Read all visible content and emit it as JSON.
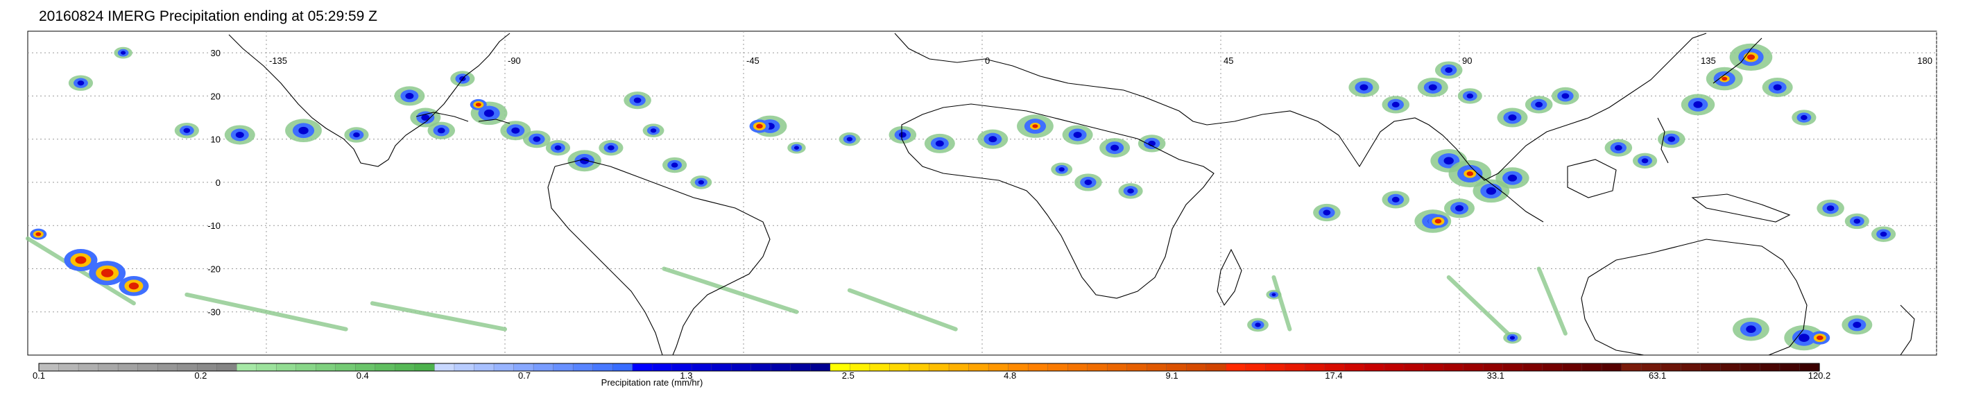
{
  "title": "20160824 IMERG Precipitation ending at 05:29:59 Z",
  "map": {
    "lon_range": [
      -180,
      180
    ],
    "lat_range": [
      -40,
      35
    ],
    "lat_ticks": [
      30,
      20,
      10,
      0,
      -10,
      -20,
      -30
    ],
    "lat_tick_labels": [
      "30",
      "20",
      "10",
      "0",
      "-10",
      "-20",
      "-30"
    ],
    "lon_ticks": [
      -135,
      -90,
      -45,
      0,
      45,
      90,
      135,
      180
    ],
    "lon_tick_labels": [
      "-135",
      "-90",
      "-45",
      "0",
      "45",
      "90",
      "135",
      "180"
    ],
    "grid": true,
    "coastline_color": "#000000"
  },
  "colorbar": {
    "label": "Precipitation rate (mm/hr)",
    "tick_labels": [
      "0.1",
      "0.2",
      "0.4",
      "0.7",
      "1.3",
      "2.5",
      "4.8",
      "9.1",
      "17.4",
      "33.1",
      "63.1",
      "120.2"
    ],
    "bin_colors": [
      "#bdbdbd",
      "#b6b6b6",
      "#afafaf",
      "#a8a8a8",
      "#a2a2a2",
      "#9c9c9c",
      "#969696",
      "#909090",
      "#8a8a8a",
      "#848484",
      "#a6e8a6",
      "#9ce29c",
      "#92dc92",
      "#88d688",
      "#7ed07e",
      "#74ca74",
      "#6ac46a",
      "#60be60",
      "#56b856",
      "#4db24d",
      "#c8d8ff",
      "#b8ccff",
      "#a8c0ff",
      "#98b4ff",
      "#88a8ff",
      "#789cff",
      "#6890ff",
      "#5884ff",
      "#4878ff",
      "#386cff",
      "#0000ff",
      "#0000f2",
      "#0000e6",
      "#0000da",
      "#0000ce",
      "#0000c2",
      "#0000b6",
      "#0000aa",
      "#00009e",
      "#000092",
      "#ffff00",
      "#fff200",
      "#ffe500",
      "#ffd800",
      "#ffcb00",
      "#ffbe00",
      "#ffb100",
      "#ffa400",
      "#ff9700",
      "#ff8a00",
      "#ff8000",
      "#fa7a00",
      "#f57300",
      "#f06d00",
      "#eb6600",
      "#e65f00",
      "#e05800",
      "#db5100",
      "#d64a00",
      "#d14300",
      "#ff2a00",
      "#f72400",
      "#ef1e00",
      "#e71800",
      "#df1200",
      "#d70c00",
      "#cf0600",
      "#c70000",
      "#bf0000",
      "#b70000",
      "#b00000",
      "#a60000",
      "#9c0000",
      "#920000",
      "#880000",
      "#7e0000",
      "#740000",
      "#6a0000",
      "#600000",
      "#560000",
      "#7a1a0a",
      "#731709",
      "#6c1408",
      "#651107",
      "#5e0e06",
      "#570b05",
      "#500804",
      "#490503",
      "#420202",
      "#3b0000"
    ]
  },
  "precip_colors": {
    "light": "#8cc98c",
    "moderate": "#3f6fff",
    "heavy": "#0000d0",
    "intense": "#ffc000",
    "extreme": "#e02000"
  },
  "precip_cells": [
    {
      "lon": -170,
      "lat": 23,
      "size": 8
    },
    {
      "lon": -162,
      "lat": 30,
      "size": 6
    },
    {
      "lon": -150,
      "lat": 12,
      "size": 8
    },
    {
      "lon": -140,
      "lat": 11,
      "size": 10
    },
    {
      "lon": -128,
      "lat": 12,
      "size": 12
    },
    {
      "lon": -118,
      "lat": 11,
      "size": 8
    },
    {
      "lon": -108,
      "lat": 20,
      "size": 10
    },
    {
      "lon": -105,
      "lat": 15,
      "size": 10
    },
    {
      "lon": -102,
      "lat": 12,
      "size": 9
    },
    {
      "lon": -98,
      "lat": 24,
      "size": 8
    },
    {
      "lon": -93,
      "lat": 16,
      "size": 12
    },
    {
      "lon": -88,
      "lat": 12,
      "size": 10
    },
    {
      "lon": -84,
      "lat": 10,
      "size": 9
    },
    {
      "lon": -80,
      "lat": 8,
      "size": 8
    },
    {
      "lon": -75,
      "lat": 5,
      "size": 11
    },
    {
      "lon": -70,
      "lat": 8,
      "size": 8
    },
    {
      "lon": -65,
      "lat": 19,
      "size": 9
    },
    {
      "lon": -58,
      "lat": 4,
      "size": 8
    },
    {
      "lon": -53,
      "lat": 0,
      "size": 7
    },
    {
      "lon": -62,
      "lat": 12,
      "size": 7
    },
    {
      "lon": -40,
      "lat": 13,
      "size": 11
    },
    {
      "lon": -35,
      "lat": 8,
      "size": 6
    },
    {
      "lon": -25,
      "lat": 10,
      "size": 7
    },
    {
      "lon": -15,
      "lat": 11,
      "size": 9
    },
    {
      "lon": -8,
      "lat": 9,
      "size": 10
    },
    {
      "lon": 2,
      "lat": 10,
      "size": 10
    },
    {
      "lon": 10,
      "lat": 13,
      "size": 12
    },
    {
      "lon": 18,
      "lat": 11,
      "size": 10
    },
    {
      "lon": 25,
      "lat": 8,
      "size": 10
    },
    {
      "lon": 32,
      "lat": 9,
      "size": 9
    },
    {
      "lon": 20,
      "lat": 0,
      "size": 9
    },
    {
      "lon": 28,
      "lat": -2,
      "size": 8
    },
    {
      "lon": 15,
      "lat": 3,
      "size": 7
    },
    {
      "lon": 72,
      "lat": 22,
      "size": 10
    },
    {
      "lon": 78,
      "lat": 18,
      "size": 9
    },
    {
      "lon": 85,
      "lat": 22,
      "size": 10
    },
    {
      "lon": 88,
      "lat": 26,
      "size": 9
    },
    {
      "lon": 92,
      "lat": 20,
      "size": 8
    },
    {
      "lon": 100,
      "lat": 15,
      "size": 10
    },
    {
      "lon": 105,
      "lat": 18,
      "size": 9
    },
    {
      "lon": 110,
      "lat": 20,
      "size": 9
    },
    {
      "lon": 88,
      "lat": 5,
      "size": 12
    },
    {
      "lon": 92,
      "lat": 2,
      "size": 14
    },
    {
      "lon": 96,
      "lat": -2,
      "size": 12
    },
    {
      "lon": 100,
      "lat": 1,
      "size": 11
    },
    {
      "lon": 85,
      "lat": -9,
      "size": 12
    },
    {
      "lon": 90,
      "lat": -6,
      "size": 10
    },
    {
      "lon": 78,
      "lat": -4,
      "size": 9
    },
    {
      "lon": 65,
      "lat": -7,
      "size": 9
    },
    {
      "lon": 120,
      "lat": 8,
      "size": 9
    },
    {
      "lon": 125,
      "lat": 5,
      "size": 8
    },
    {
      "lon": 130,
      "lat": 10,
      "size": 9
    },
    {
      "lon": 135,
      "lat": 18,
      "size": 11
    },
    {
      "lon": 140,
      "lat": 24,
      "size": 12
    },
    {
      "lon": 145,
      "lat": 29,
      "size": 14
    },
    {
      "lon": 150,
      "lat": 22,
      "size": 10
    },
    {
      "lon": 155,
      "lat": 15,
      "size": 8
    },
    {
      "lon": 160,
      "lat": -6,
      "size": 9
    },
    {
      "lon": 165,
      "lat": -9,
      "size": 8
    },
    {
      "lon": 170,
      "lat": -12,
      "size": 8
    },
    {
      "lon": 145,
      "lat": -34,
      "size": 12
    },
    {
      "lon": 155,
      "lat": -36,
      "size": 13
    },
    {
      "lon": 165,
      "lat": -33,
      "size": 10
    },
    {
      "lon": 52,
      "lat": -33,
      "size": 7
    },
    {
      "lon": 100,
      "lat": -36,
      "size": 6
    },
    {
      "lon": 55,
      "lat": -26,
      "size": 5
    }
  ],
  "heavy_cells": [
    {
      "lon": -170,
      "lat": -18,
      "size": 10
    },
    {
      "lon": -165,
      "lat": -21,
      "size": 11
    },
    {
      "lon": -160,
      "lat": -24,
      "size": 9
    },
    {
      "lon": -95,
      "lat": 18,
      "size": 5
    },
    {
      "lon": -42,
      "lat": 13,
      "size": 6
    },
    {
      "lon": 10,
      "lat": 13,
      "size": 5
    },
    {
      "lon": 92,
      "lat": 2,
      "size": 6
    },
    {
      "lon": 86,
      "lat": -9,
      "size": 6
    },
    {
      "lon": 145,
      "lat": 29,
      "size": 7
    },
    {
      "lon": 140,
      "lat": 24,
      "size": 5
    },
    {
      "lon": 158,
      "lat": -36,
      "size": 6
    },
    {
      "lon": -178,
      "lat": -12,
      "size": 5
    }
  ],
  "light_streaks": [
    {
      "lon1": -150,
      "lat1": -26,
      "lon2": -120,
      "lat2": -34
    },
    {
      "lon1": -115,
      "lat1": -28,
      "lon2": -90,
      "lat2": -34
    },
    {
      "lon1": -60,
      "lat1": -20,
      "lon2": -35,
      "lat2": -30
    },
    {
      "lon1": -25,
      "lat1": -25,
      "lon2": -5,
      "lat2": -34
    },
    {
      "lon1": 55,
      "lat1": -22,
      "lon2": 58,
      "lat2": -34
    },
    {
      "lon1": 88,
      "lat1": -22,
      "lon2": 100,
      "lat2": -36
    },
    {
      "lon1": 105,
      "lat1": -20,
      "lon2": 110,
      "lat2": -35
    },
    {
      "lon1": -180,
      "lat1": -13,
      "lon2": -160,
      "lat2": -28
    }
  ]
}
